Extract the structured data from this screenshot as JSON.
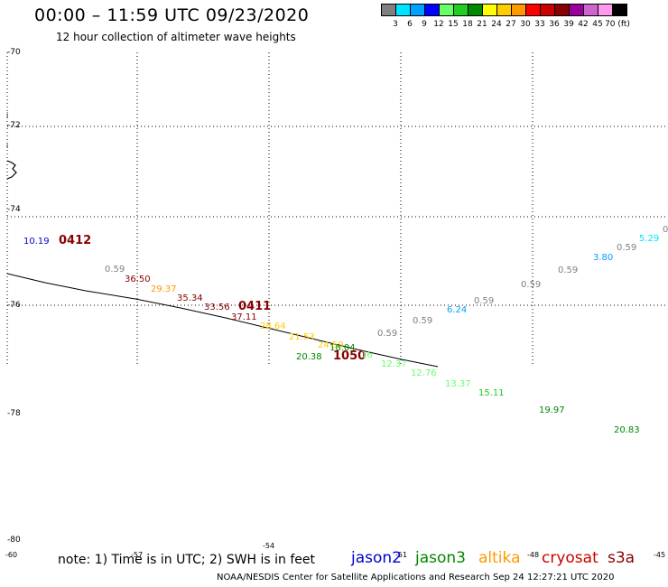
{
  "header": {
    "title": "00:00 – 11:59 UTC 09/23/2020",
    "subtitle": "12 hour collection of altimeter wave heights"
  },
  "color_scale": {
    "colors": [
      "#808080",
      "#00e5ff",
      "#00a0ff",
      "#0000ff",
      "#66ff66",
      "#22cc22",
      "#008800",
      "#ffff00",
      "#ffcc00",
      "#ff9900",
      "#ff0000",
      "#cc0000",
      "#880000",
      "#990099",
      "#cc66cc",
      "#ff99ee",
      "#000000"
    ],
    "labels": [
      "3",
      "6",
      "9",
      "12",
      "15",
      "18",
      "21",
      "24",
      "27",
      "30",
      "33",
      "36",
      "39",
      "42",
      "45",
      "70 (ft)"
    ]
  },
  "map": {
    "lat_labels": [
      "-70",
      "-72",
      "-74",
      "-76",
      "-78",
      "-80"
    ],
    "lon_labels": [
      "-60",
      "-57",
      "-54",
      "-51",
      "-48",
      "-45"
    ],
    "coast_marks": [
      "i",
      "i"
    ],
    "edge_value": "0",
    "pass_labels": [
      {
        "text": "0412",
        "color": "#880000"
      },
      {
        "text": "0411",
        "color": "#880000"
      },
      {
        "text": "1050",
        "color": "#880000"
      }
    ],
    "swh_labels": [
      {
        "text": "10.19",
        "color": "#0000cc"
      },
      {
        "text": "0.59",
        "color": "#808080"
      },
      {
        "text": "36.50",
        "color": "#880000"
      },
      {
        "text": "29.37",
        "color": "#ff9900"
      },
      {
        "text": "35.34",
        "color": "#880000"
      },
      {
        "text": "33.56",
        "color": "#880000"
      },
      {
        "text": "37.11",
        "color": "#880000"
      },
      {
        "text": "28.64",
        "color": "#ffcc00"
      },
      {
        "text": "21.53",
        "color": "#ffcc00"
      },
      {
        "text": "24.59",
        "color": "#ffcc00"
      },
      {
        "text": "18.04",
        "color": "#008800"
      },
      {
        "text": "20.38",
        "color": "#008800"
      },
      {
        "text": "16",
        "color": "#66ff66"
      },
      {
        "text": "12.37",
        "color": "#66ff66"
      },
      {
        "text": "12.76",
        "color": "#66ff66"
      },
      {
        "text": "13.37",
        "color": "#66ff66"
      },
      {
        "text": "15.11",
        "color": "#22cc22"
      },
      {
        "text": "19.97",
        "color": "#008800"
      },
      {
        "text": "20.83",
        "color": "#008800"
      },
      {
        "text": "0.59",
        "color": "#808080"
      },
      {
        "text": "0.59",
        "color": "#808080"
      },
      {
        "text": "6.24",
        "color": "#00a0ff"
      },
      {
        "text": "0.59",
        "color": "#808080"
      },
      {
        "text": "0.59",
        "color": "#808080"
      },
      {
        "text": "0.59",
        "color": "#808080"
      },
      {
        "text": "3.80",
        "color": "#00a0ff"
      },
      {
        "text": "0.59",
        "color": "#808080"
      },
      {
        "text": "5.29",
        "color": "#00e5ff"
      }
    ]
  },
  "footer": {
    "note": "note: 1) Time is in UTC; 2) SWH is in feet",
    "credit": "NOAA/NESDIS Center for Satellite Applications and Research    Sep 24 12:27:21 UTC 2020",
    "legend": [
      {
        "text": "jason2",
        "color": "#0000cc"
      },
      {
        "text": "jason3",
        "color": "#008800"
      },
      {
        "text": "altika",
        "color": "#ff9900"
      },
      {
        "text": "cryosat",
        "color": "#cc0000"
      },
      {
        "text": "s3a",
        "color": "#880000"
      }
    ]
  }
}
